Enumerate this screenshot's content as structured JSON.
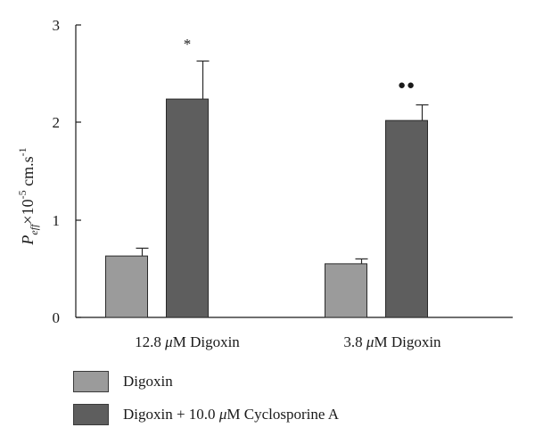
{
  "chart_data": {
    "type": "bar",
    "ylabel_parts": {
      "p": "P",
      "p_sub": "eff",
      "times": "×10",
      "exp1": "-5",
      "units": " cm.s",
      "exp2": "-1"
    },
    "ylim": [
      0,
      3
    ],
    "yticks": [
      "0",
      "1",
      "2",
      "3"
    ],
    "categories": [
      {
        "prefix": "12.8 ",
        "mu": "μ",
        "suffix": "M Digoxin"
      },
      {
        "prefix": "3.8 ",
        "mu": "μ",
        "suffix": "M Digoxin"
      }
    ],
    "series": [
      {
        "name": "Digoxin",
        "color": "#9b9b9b",
        "values": [
          0.63,
          0.55
        ],
        "errors": [
          0.08,
          0.05
        ]
      },
      {
        "name": "Digoxin + 10.0 μM Cyclosporine A",
        "color": "#5e5e5e",
        "values": [
          2.24,
          2.02
        ],
        "errors": [
          0.39,
          0.16
        ]
      }
    ],
    "annotations": [
      "*",
      "●●"
    ],
    "legend_position": "bottom"
  },
  "legend": {
    "item1": "Digoxin",
    "item2_prefix": "Digoxin + 10.0 ",
    "item2_mu": "μ",
    "item2_suffix": "M Cyclosporine A"
  }
}
